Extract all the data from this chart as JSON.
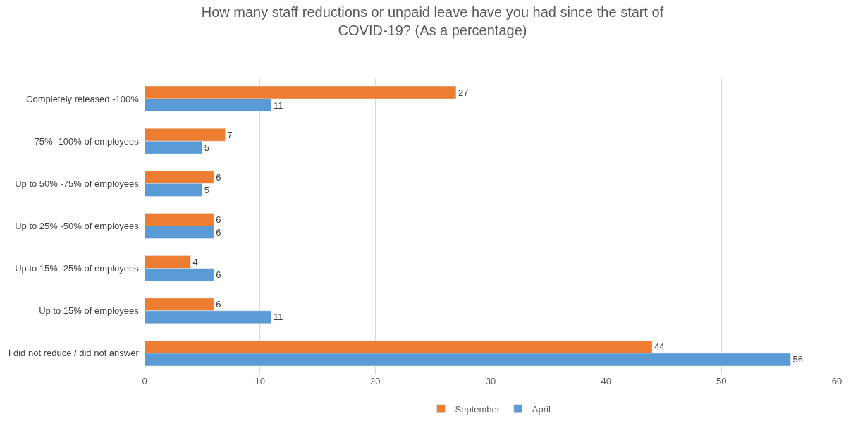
{
  "chart_data": {
    "type": "bar",
    "orientation": "horizontal",
    "title": "How many staff reductions or unpaid leave have you had since the start of COVID-19? (As a percentage)",
    "categories": [
      "Completely released -100%",
      "75% -100% of employees",
      "Up to 50% -75% of employees",
      "Up to 25% -50% of employees",
      "Up to 15% -25% of employees",
      "Up to 15% of employees",
      "I did not reduce / did not answer"
    ],
    "series": [
      {
        "name": "September",
        "color": "#ed7d31",
        "values": [
          27,
          7,
          6,
          6,
          4,
          6,
          44
        ]
      },
      {
        "name": "April",
        "color": "#5b9bd5",
        "values": [
          11,
          5,
          5,
          6,
          6,
          11,
          56
        ]
      }
    ],
    "xlim": [
      0,
      60
    ],
    "xticks": [
      0,
      10,
      20,
      30,
      40,
      50,
      60
    ],
    "grid": "x",
    "legend": "bottom",
    "data_labels": true
  }
}
